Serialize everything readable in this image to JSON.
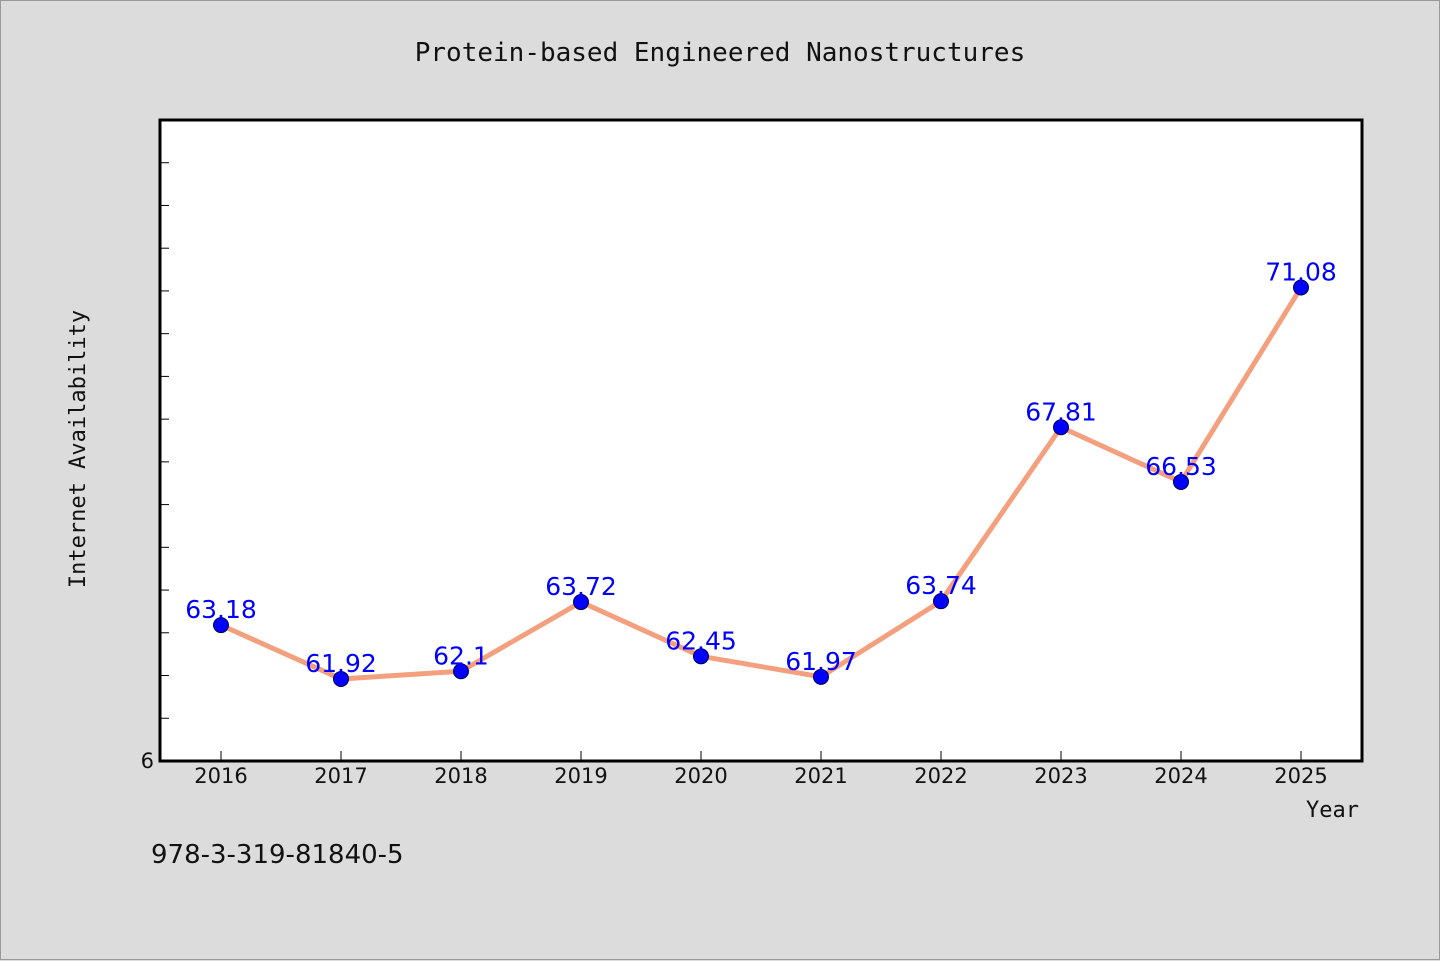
{
  "chart_data": {
    "type": "line",
    "title": "Protein-based Engineered Nanostructures",
    "xlabel": "Year",
    "ylabel": "Internet Availability",
    "categories": [
      "2016",
      "2017",
      "2018",
      "2019",
      "2020",
      "2021",
      "2022",
      "2023",
      "2024",
      "2025"
    ],
    "series": [
      {
        "values": [
          63.18,
          61.92,
          62.1,
          63.72,
          62.45,
          61.97,
          63.74,
          67.81,
          66.53,
          71.08
        ],
        "data_labels": [
          "63.18",
          "61.92",
          "62.1",
          "63.72",
          "62.45",
          "61.97",
          "63.74",
          "67.81",
          "66.53",
          "71.08"
        ]
      }
    ],
    "ylim": [
      60,
      75
    ],
    "y_tick_labels": [
      "6"
    ],
    "grid": false,
    "legend": "none",
    "colors": {
      "line": "#f4a07e",
      "marker": "#0000ff",
      "data_label": "#0000ff",
      "plot_background": "#ffffff",
      "page_background": "#dcdcdc"
    }
  },
  "footer": {
    "isbn": "978-3-319-81840-5"
  }
}
